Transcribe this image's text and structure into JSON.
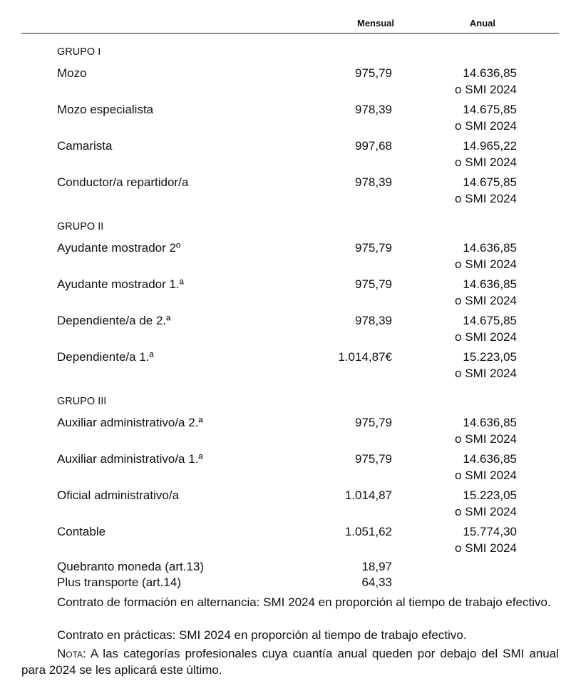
{
  "header": {
    "mensual": "Mensual",
    "anual": "Anual"
  },
  "groups": [
    {
      "title": "GRUPO I",
      "rows": [
        {
          "name": "Mozo",
          "mensual": "975,79",
          "anual": "14.636,85",
          "anual_note": "o SMI 2024"
        },
        {
          "name": "Mozo especialista",
          "mensual": "978,39",
          "anual": "14.675,85",
          "anual_note": "o SMI 2024"
        },
        {
          "name": "Camarista",
          "mensual": "997,68",
          "anual": "14.965,22",
          "anual_note": "o SMI 2024"
        },
        {
          "name": "Conductor/a repartidor/a",
          "mensual": "978,39",
          "anual": "14.675,85",
          "anual_note": "o SMI 2024"
        }
      ]
    },
    {
      "title": "GRUPO II",
      "rows": [
        {
          "name": "Ayudante mostrador 2º",
          "mensual": "975,79",
          "anual": "14.636,85",
          "anual_note": "o SMI 2024"
        },
        {
          "name": "Ayudante mostrador 1.ª",
          "mensual": "975,79",
          "anual": "14.636,85",
          "anual_note": "o SMI 2024"
        },
        {
          "name": "Dependiente/a de 2.ª",
          "mensual": "978,39",
          "anual": "14.675,85",
          "anual_note": "o SMI 2024"
        },
        {
          "name": "Dependiente/a 1.ª",
          "mensual": "1.014,87€",
          "anual": "15.223,05",
          "anual_note": "o SMI 2024"
        }
      ]
    },
    {
      "title": "GRUPO III",
      "rows": [
        {
          "name": "Auxiliar administrativo/a 2.ª",
          "mensual": "975,79",
          "anual": "14.636,85",
          "anual_note": "o SMI 2024"
        },
        {
          "name": "Auxiliar administrativo/a 1.ª",
          "mensual": "975,79",
          "anual": "14.636,85",
          "anual_note": "o SMI 2024"
        },
        {
          "name": "Oficial administrativo/a",
          "mensual": "1.014,87",
          "anual": "15.223,05",
          "anual_note": "o SMI 2024"
        },
        {
          "name": "Contable",
          "mensual": "1.051,62",
          "anual": "15.774,30",
          "anual_note": "o SMI 2024"
        }
      ]
    }
  ],
  "extras": [
    {
      "name": "Quebranto moneda (art.13)",
      "mensual": "18,97"
    },
    {
      "name": "Plus transporte (art.14)",
      "mensual": "64,33"
    }
  ],
  "notes": [
    "Contrato de formación en alternancia: SMI 2024 en proporción al tiempo de trabajo efectivo.",
    "Contrato en prácticas: SMI 2024 en proporción al tiempo de trabajo efectivo."
  ],
  "nota": {
    "label": "Nota:",
    "text": " A las categorías profesionales cuya cuantía anual queden por debajo del SMI anual para 2024 se les aplicará este último."
  }
}
